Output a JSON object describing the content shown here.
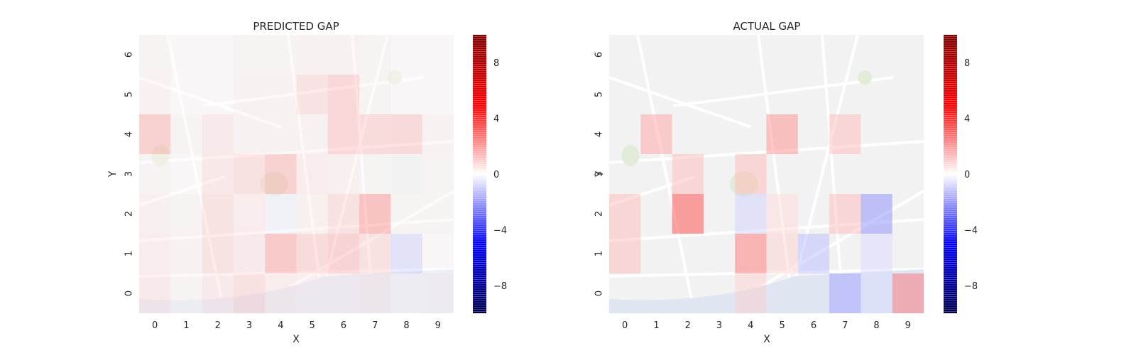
{
  "chart_data": [
    {
      "type": "heatmap",
      "title": "PREDICTED GAP",
      "xlabel": "X",
      "ylabel": "Y",
      "x_ticks": [
        "0",
        "1",
        "2",
        "3",
        "4",
        "5",
        "6",
        "7",
        "8",
        "9"
      ],
      "y_ticks": [
        "0",
        "1",
        "2",
        "3",
        "4",
        "5",
        "6"
      ],
      "colorbar": {
        "range": [
          -10,
          10
        ],
        "ticks": [
          "8",
          "4",
          "0",
          "−4",
          "−8"
        ],
        "colormap": "seismic"
      },
      "background": "street map",
      "cells": [
        [
          0.6,
          0.2,
          0.6,
          1.0,
          0.5,
          0.4,
          0.4,
          0.5,
          0.2,
          0.3
        ],
        [
          0.5,
          0.3,
          0.9,
          0.6,
          2.0,
          1.2,
          1.6,
          1.0,
          -0.9,
          0.1
        ],
        [
          0.4,
          0.2,
          0.9,
          0.5,
          -0.3,
          0.4,
          1.0,
          2.3,
          0.2,
          0.2
        ],
        [
          0.2,
          0.1,
          0.7,
          1.0,
          1.7,
          0.5,
          0.4,
          0.2,
          0.0,
          0.2
        ],
        [
          1.7,
          0.2,
          0.6,
          0.3,
          0.3,
          0.3,
          1.4,
          1.2,
          1.3,
          0.3
        ],
        [
          0.3,
          0.1,
          0.1,
          0.3,
          0.3,
          0.9,
          1.4,
          0.2,
          0.1,
          0.1
        ],
        [
          0.2,
          0.1,
          0.1,
          0.2,
          0.2,
          0.3,
          0.3,
          0.2,
          0.1,
          0.1
        ]
      ],
      "below_row0_fill": [
        null,
        null,
        null,
        null,
        null,
        -0.6,
        -0.9,
        -0.9,
        -0.9,
        -0.9
      ]
    },
    {
      "type": "heatmap",
      "title": "ACTUAL GAP",
      "xlabel": "X",
      "ylabel": "Y",
      "x_ticks": [
        "0",
        "1",
        "2",
        "3",
        "4",
        "5",
        "6",
        "7",
        "8",
        "9"
      ],
      "y_ticks": [
        "0",
        "1",
        "2",
        "3",
        "4",
        "5",
        "6"
      ],
      "colorbar": {
        "range": [
          -10,
          10
        ],
        "ticks": [
          "8",
          "4",
          "0",
          "−4",
          "−8"
        ],
        "colormap": "seismic"
      },
      "background": "street map",
      "cells": [
        [
          0.0,
          0.0,
          0.0,
          0.0,
          1.0,
          0.0,
          0.0,
          -2.0,
          -0.8,
          3.0
        ],
        [
          1.5,
          0.0,
          0.0,
          0.0,
          3.0,
          1.0,
          -1.5,
          0.0,
          -0.8,
          0.0
        ],
        [
          1.5,
          0.0,
          4.0,
          0.0,
          -1.0,
          0.8,
          0.0,
          1.5,
          -2.5,
          0.0
        ],
        [
          0.0,
          0.0,
          1.5,
          0.0,
          1.5,
          0.0,
          0.0,
          0.0,
          0.0,
          0.0
        ],
        [
          0.0,
          2.0,
          0.0,
          0.0,
          0.0,
          2.5,
          0.0,
          1.5,
          0.0,
          0.0
        ],
        [
          0.0,
          0.0,
          0.0,
          0.0,
          0.0,
          0.0,
          0.0,
          0.0,
          0.0,
          0.0
        ],
        [
          0.0,
          0.0,
          0.0,
          0.0,
          0.0,
          0.0,
          0.0,
          0.0,
          0.0,
          0.0
        ]
      ],
      "below_row0_fill": [
        null,
        null,
        null,
        null,
        null,
        -0.8,
        -1.8,
        -1.5,
        -0.8,
        null
      ]
    }
  ]
}
